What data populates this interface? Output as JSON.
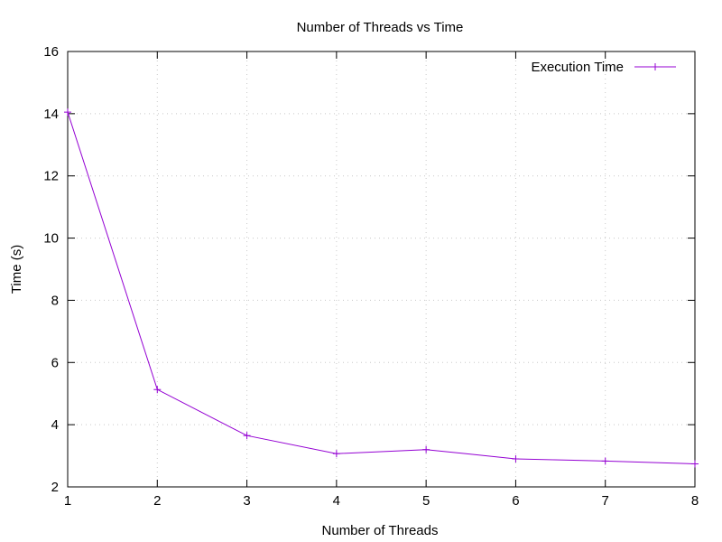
{
  "chart_data": {
    "type": "line",
    "title": "Number of Threads vs Time",
    "xlabel": "Number of Threads",
    "ylabel": "Time (s)",
    "xlim": [
      1,
      8
    ],
    "ylim": [
      2,
      16
    ],
    "xticks": [
      "1",
      "2",
      "3",
      "4",
      "5",
      "6",
      "7",
      "8"
    ],
    "yticks": [
      "2",
      "4",
      "6",
      "8",
      "10",
      "12",
      "14",
      "16"
    ],
    "grid": true,
    "legend_position": "top-right",
    "series": [
      {
        "name": "Execution Time",
        "color": "#9400d3",
        "marker": "plus",
        "x": [
          1,
          2,
          3,
          4,
          5,
          6,
          7,
          8
        ],
        "y": [
          14.05,
          5.13,
          3.65,
          3.07,
          3.2,
          2.9,
          2.83,
          2.74
        ]
      }
    ]
  }
}
